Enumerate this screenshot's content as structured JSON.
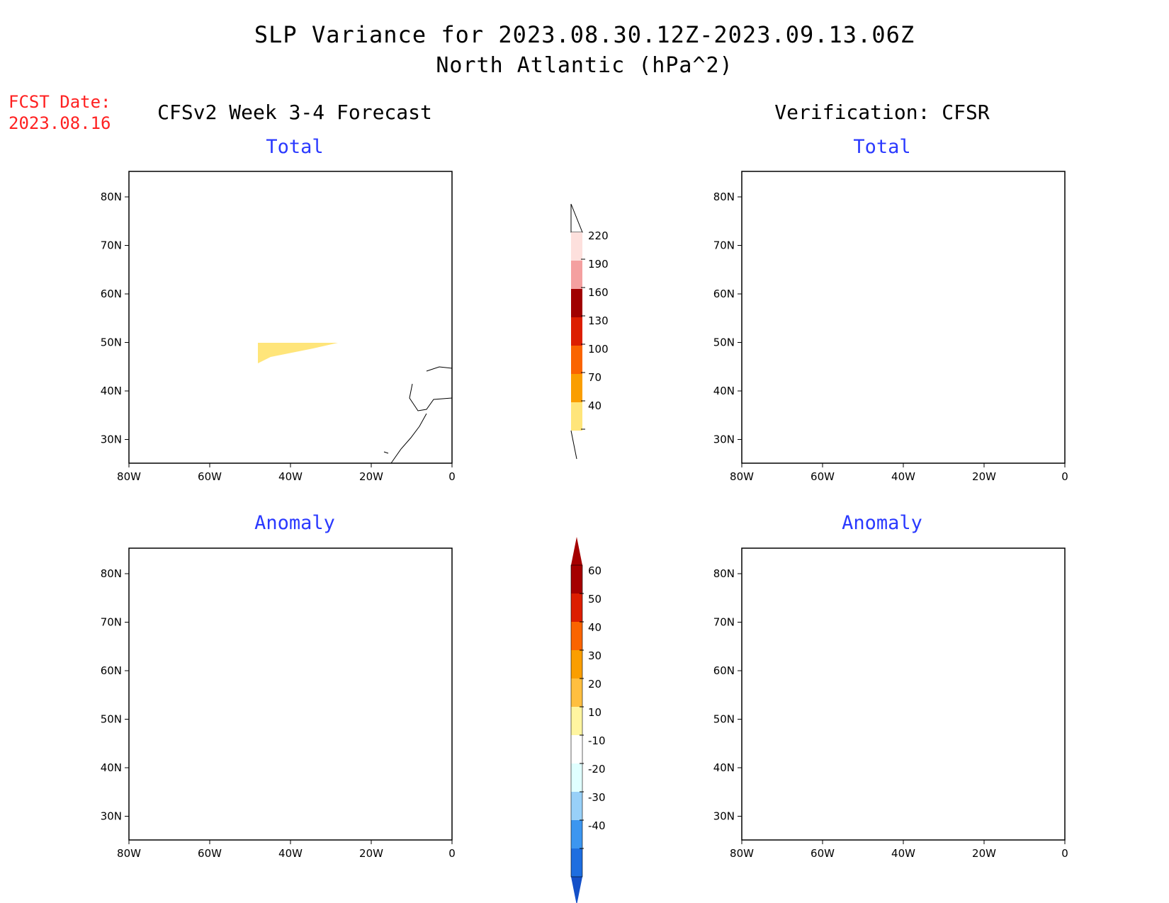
{
  "title": "SLP Variance for 2023.08.30.12Z-2023.09.13.06Z",
  "subtitle": "North Atlantic (hPa^2)",
  "fcst_label": "FCST Date:",
  "fcst_date": "2023.08.16",
  "left_column_title": "CFSv2 Week 3-4 Forecast",
  "right_column_title": "Verification: CFSR",
  "panels": {
    "fc_total": "Total",
    "fc_anomaly": "Anomaly",
    "ver_total": "Total",
    "ver_anomaly": "Anomaly"
  },
  "axes": {
    "lat_ticks": [
      "80N",
      "70N",
      "60N",
      "50N",
      "40N",
      "30N"
    ],
    "lon_ticks": [
      "80W",
      "60W",
      "40W",
      "20W",
      "0"
    ]
  },
  "total_colorbar": {
    "labels": [
      "220",
      "190",
      "160",
      "130",
      "100",
      "70",
      "40"
    ],
    "colors": [
      "#fde0dd",
      "#f4a0a0",
      "#a00000",
      "#dc1e00",
      "#fa6400",
      "#fa9e00",
      "#ffe57a"
    ]
  },
  "anomaly_colorbar": {
    "labels": [
      "60",
      "50",
      "40",
      "30",
      "20",
      "10",
      "-10",
      "-20",
      "-30",
      "-40"
    ],
    "warm_colors": [
      "#a50000",
      "#dc1e00",
      "#fa6400",
      "#fa9e00",
      "#ffbf40",
      "#fff5a0"
    ],
    "cool_colors": [
      "#e0ffff",
      "#98d0f8",
      "#3c96f0",
      "#1e6ee0",
      "#1450c8"
    ]
  },
  "icons": [
    "map-outline",
    "colorbar-arrow"
  ]
}
